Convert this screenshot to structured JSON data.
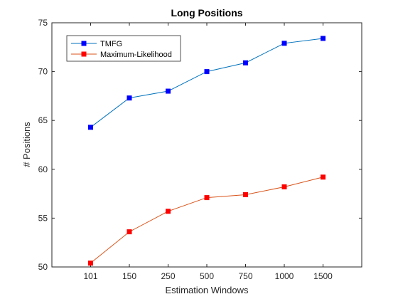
{
  "chart_data": {
    "type": "line",
    "title": "Long Positions",
    "xlabel": "Estimation Windows",
    "ylabel": "# Positions",
    "categories": [
      "101",
      "150",
      "250",
      "500",
      "750",
      "1000",
      "1500"
    ],
    "ylim": [
      50,
      75
    ],
    "yticks": [
      50,
      55,
      60,
      65,
      70,
      75
    ],
    "grid": false,
    "legend_position": "top-left",
    "series": [
      {
        "name": "TMFG",
        "color": "#0072BD",
        "marker_color": "#0000FF",
        "marker": "square",
        "values": [
          64.3,
          67.3,
          68.0,
          70.0,
          70.9,
          72.9,
          73.4
        ]
      },
      {
        "name": "Maximum-Likelihood",
        "color": "#D95319",
        "marker_color": "#FF0000",
        "marker": "square",
        "values": [
          50.4,
          53.6,
          55.7,
          57.1,
          57.4,
          58.2,
          59.2
        ]
      }
    ]
  }
}
